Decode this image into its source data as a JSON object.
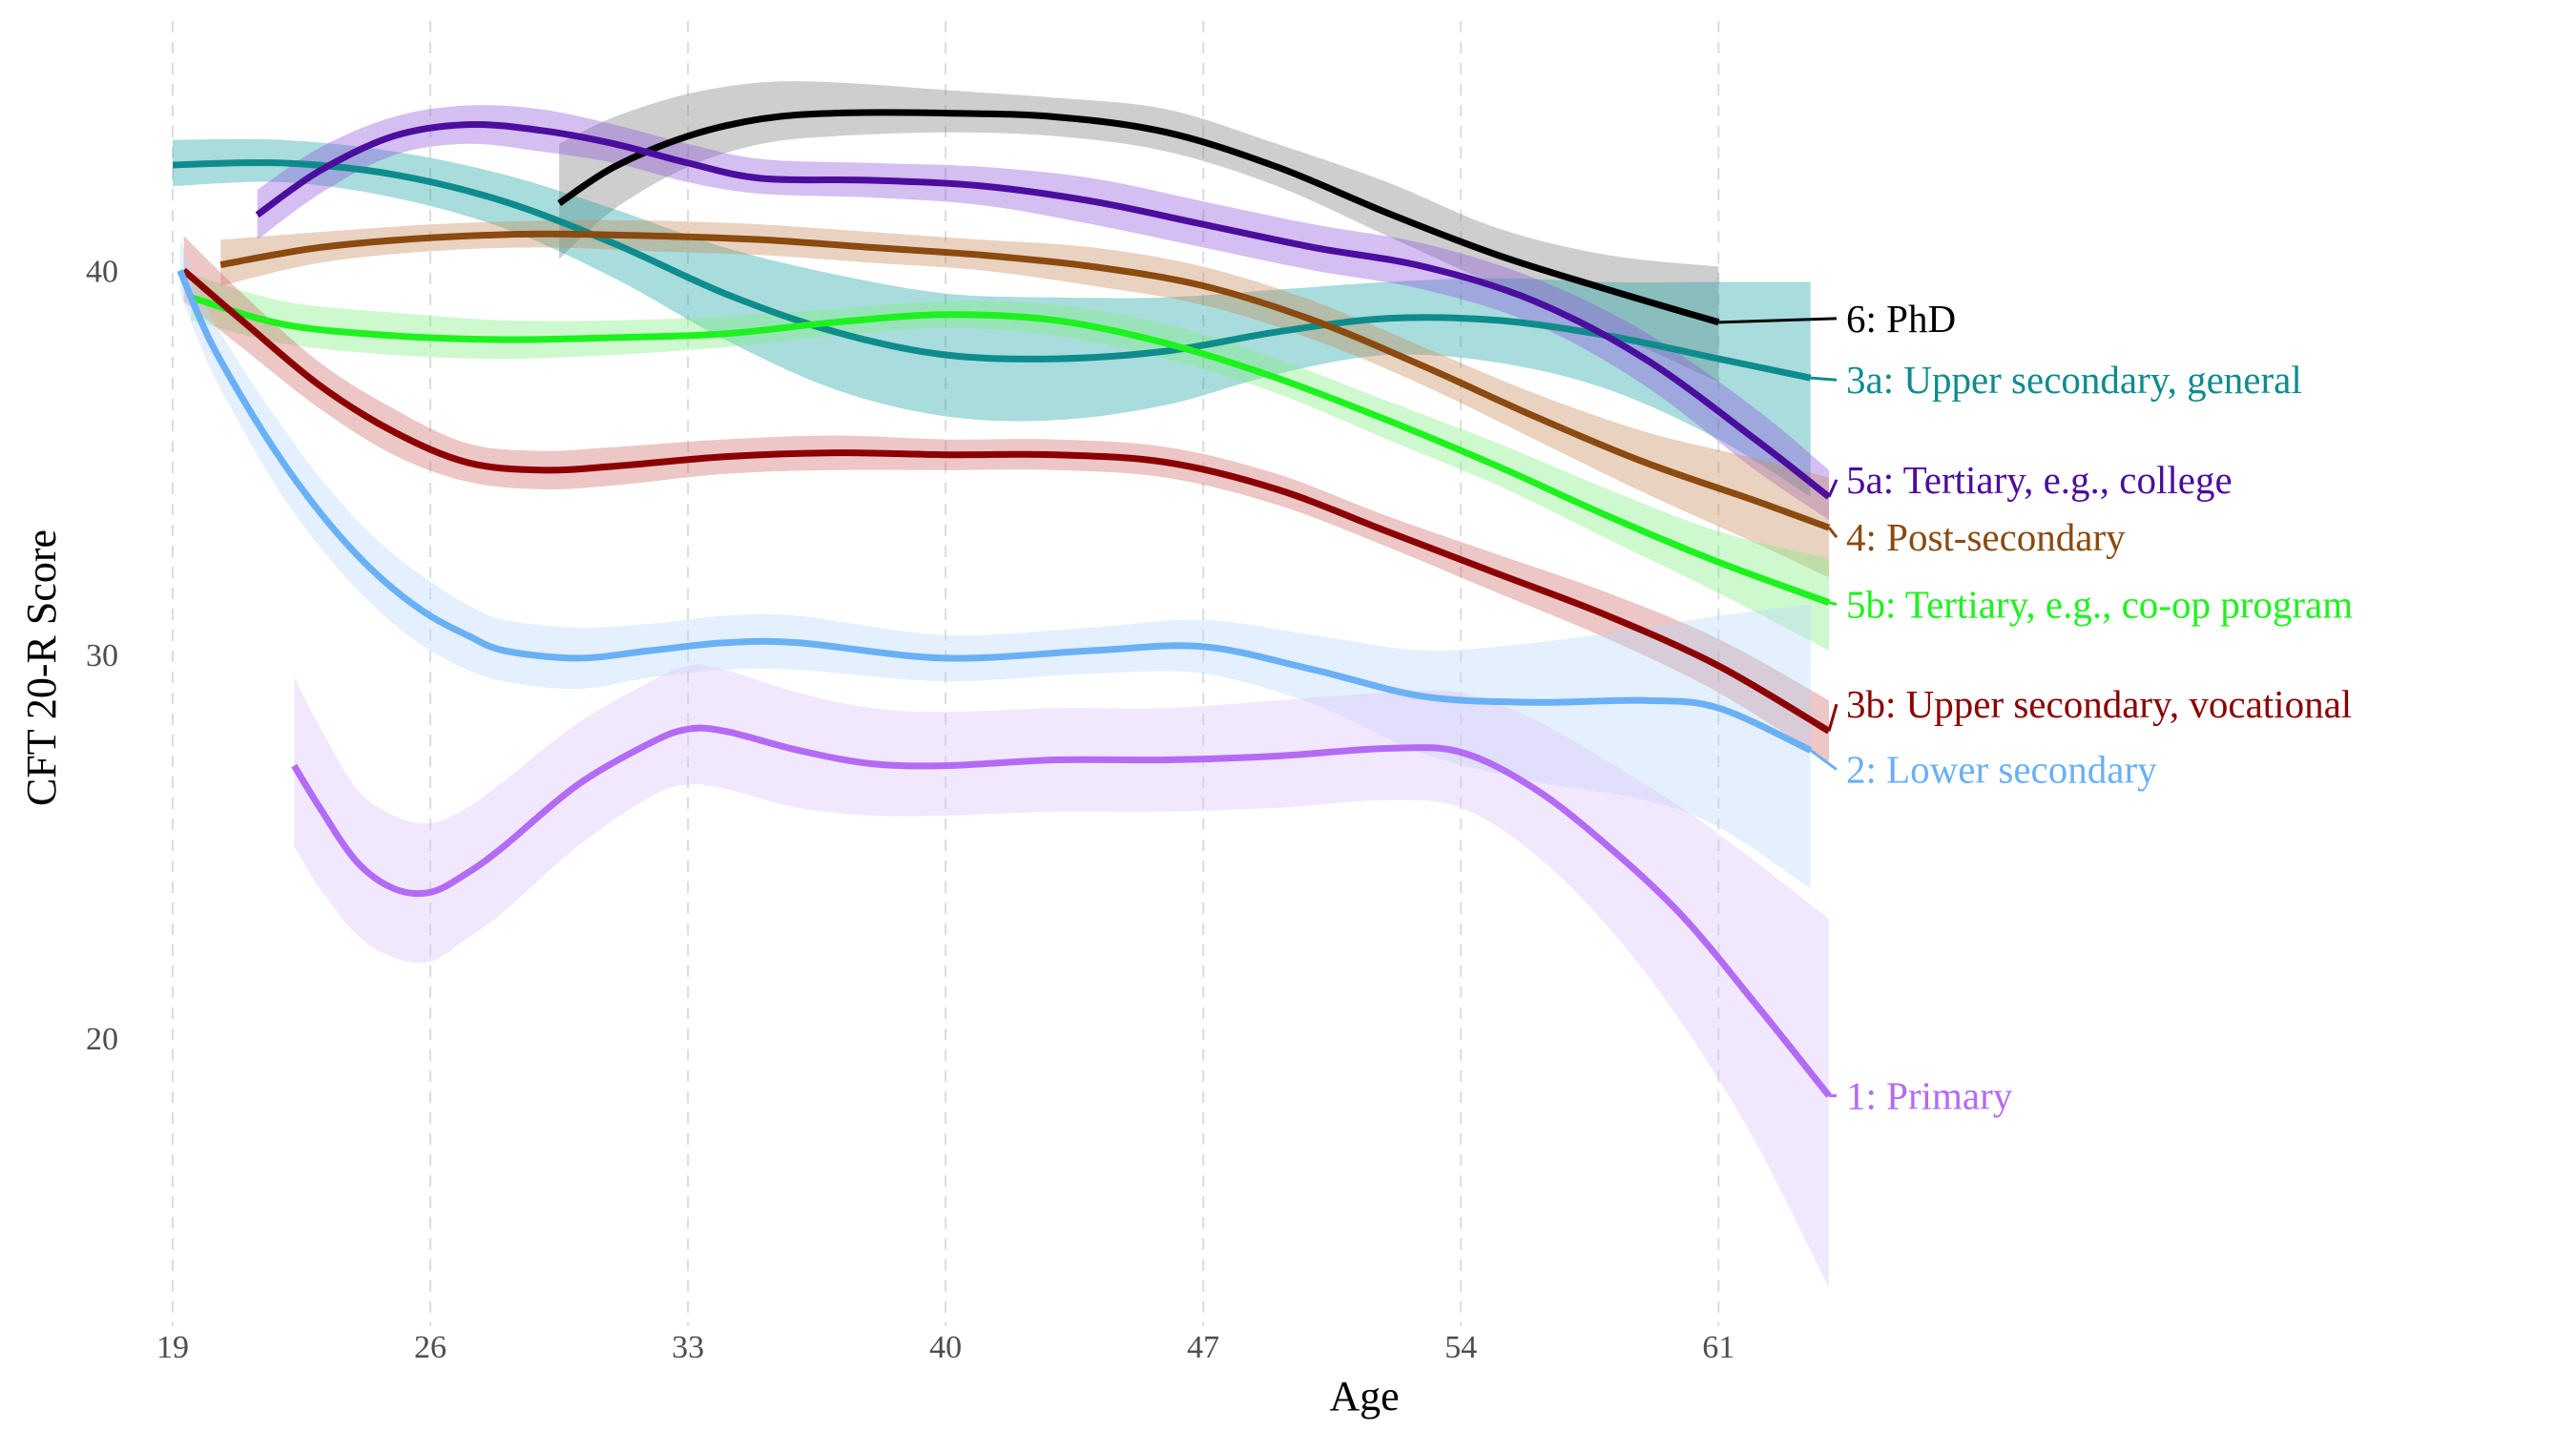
{
  "chart_data": {
    "type": "line",
    "xlabel": "Age",
    "ylabel": "CFT 20-R Score",
    "xlim": [
      19,
      64
    ],
    "ylim": [
      12.5,
      46.5
    ],
    "x_ticks": [
      19,
      26,
      33,
      40,
      47,
      54,
      61
    ],
    "y_ticks": [
      20,
      30,
      40
    ],
    "grid": "vertical dashed",
    "legend": "direct labels at right end of lines",
    "series": [
      {
        "name": "6: PhD",
        "color": "#000000",
        "band_color": "#7f7f7f",
        "label_y": 38.75,
        "x": [
          29.5,
          31,
          33,
          35,
          37,
          40,
          43,
          46,
          49,
          52,
          55,
          58,
          61
        ],
        "y": [
          41.75,
          42.7,
          43.5,
          43.95,
          44.1,
          44.1,
          44.0,
          43.6,
          42.7,
          41.5,
          40.4,
          39.5,
          38.65
        ],
        "lower": [
          40.3,
          41.6,
          42.7,
          43.3,
          43.5,
          43.6,
          43.5,
          43.1,
          42.2,
          40.9,
          39.6,
          38.4,
          37.1
        ],
        "upper": [
          43.3,
          44.0,
          44.6,
          44.9,
          44.9,
          44.7,
          44.5,
          44.2,
          43.3,
          42.3,
          41.1,
          40.4,
          40.1
        ]
      },
      {
        "name": "3a: Upper secondary, general",
        "color": "#0e8c8c",
        "band_color": "#1ca3a3",
        "label_y": 37.15,
        "x": [
          19,
          22,
          25,
          28,
          31,
          34,
          37,
          40,
          43,
          46,
          49,
          52,
          55,
          58,
          61,
          63.5
        ],
        "y": [
          42.75,
          42.8,
          42.5,
          41.8,
          40.7,
          39.4,
          38.4,
          37.8,
          37.7,
          37.9,
          38.4,
          38.75,
          38.7,
          38.3,
          37.7,
          37.2
        ],
        "lower": [
          42.2,
          42.3,
          41.9,
          41.1,
          39.8,
          38.2,
          36.9,
          36.2,
          36.1,
          36.5,
          37.3,
          37.8,
          37.6,
          36.9,
          35.6,
          34.1
        ],
        "upper": [
          43.4,
          43.4,
          43.1,
          42.5,
          41.6,
          40.6,
          39.9,
          39.4,
          39.3,
          39.3,
          39.5,
          39.7,
          39.8,
          39.7,
          39.7,
          39.7
        ]
      },
      {
        "name": "5a: Tertiary, e.g., college",
        "color": "#4b0d9e",
        "band_color": "#8f55dc",
        "label_y": 34.55,
        "x": [
          21.3,
          23,
          25,
          27,
          29,
          31,
          33,
          35,
          38,
          41,
          44,
          47,
          50,
          53,
          56,
          59,
          62,
          64
        ],
        "y": [
          41.45,
          42.6,
          43.5,
          43.8,
          43.65,
          43.3,
          42.8,
          42.4,
          42.35,
          42.2,
          41.8,
          41.2,
          40.6,
          40.1,
          39.2,
          37.7,
          35.6,
          34.1
        ],
        "lower": [
          40.8,
          42.0,
          43.0,
          43.3,
          43.1,
          42.8,
          42.3,
          42.0,
          41.9,
          41.7,
          41.2,
          40.6,
          40.0,
          39.5,
          38.6,
          37.0,
          34.8,
          33.5
        ],
        "upper": [
          42.1,
          43.2,
          44.0,
          44.3,
          44.2,
          43.8,
          43.3,
          42.9,
          42.8,
          42.7,
          42.4,
          41.8,
          41.2,
          40.7,
          39.8,
          38.4,
          36.4,
          34.8
        ]
      },
      {
        "name": "4: Post-secondary",
        "color": "#8b4a0f",
        "band_color": "#c98a5a",
        "label_y": 33.05,
        "x": [
          20.3,
          23,
          26,
          29,
          32,
          35,
          38,
          41,
          44,
          47,
          50,
          53,
          56,
          59,
          62,
          64
        ],
        "y": [
          40.15,
          40.6,
          40.85,
          40.95,
          40.9,
          40.8,
          40.6,
          40.4,
          40.1,
          39.6,
          38.7,
          37.5,
          36.2,
          35.0,
          34.0,
          33.3
        ],
        "lower": [
          39.6,
          40.2,
          40.5,
          40.6,
          40.5,
          40.4,
          40.2,
          40.0,
          39.6,
          39.1,
          38.2,
          37.0,
          35.6,
          34.2,
          32.9,
          32.0
        ],
        "upper": [
          40.8,
          41.0,
          41.2,
          41.3,
          41.3,
          41.2,
          41.0,
          40.8,
          40.6,
          40.1,
          39.2,
          38.0,
          36.8,
          35.8,
          35.1,
          34.6
        ]
      },
      {
        "name": "5b: Tertiary, e.g., co-op program",
        "color": "#1ef21e",
        "band_color": "#7ff07f",
        "label_y": 31.3,
        "x": [
          19.5,
          22,
          25,
          28,
          31,
          34,
          37,
          40,
          43,
          46,
          49,
          52,
          55,
          58,
          61,
          64
        ],
        "y": [
          39.3,
          38.6,
          38.3,
          38.2,
          38.25,
          38.35,
          38.65,
          38.85,
          38.7,
          38.1,
          37.2,
          36.1,
          34.9,
          33.6,
          32.4,
          31.35
        ],
        "lower": [
          38.7,
          38.1,
          37.8,
          37.7,
          37.8,
          38.0,
          38.3,
          38.5,
          38.3,
          37.7,
          36.8,
          35.6,
          34.4,
          33.0,
          31.6,
          30.1
        ],
        "upper": [
          39.9,
          39.2,
          38.9,
          38.7,
          38.7,
          38.8,
          39.0,
          39.2,
          39.1,
          38.6,
          37.7,
          36.6,
          35.5,
          34.3,
          33.2,
          32.5
        ]
      },
      {
        "name": "3b: Upper secondary, vocational",
        "color": "#8b0000",
        "band_color": "#cf6a6a",
        "label_y": 28.7,
        "x": [
          19.3,
          21,
          23,
          25,
          27,
          29,
          31,
          34,
          37,
          40,
          43,
          46,
          49,
          52,
          55,
          58,
          61,
          64
        ],
        "y": [
          40.0,
          38.6,
          37.0,
          35.8,
          35.0,
          34.8,
          34.9,
          35.15,
          35.25,
          35.2,
          35.2,
          35.0,
          34.3,
          33.2,
          32.1,
          31.0,
          29.7,
          28.0
        ],
        "lower": [
          39.2,
          37.9,
          36.4,
          35.2,
          34.5,
          34.3,
          34.4,
          34.7,
          34.8,
          34.8,
          34.8,
          34.6,
          33.9,
          32.8,
          31.6,
          30.4,
          29.0,
          27.2
        ],
        "upper": [
          40.9,
          39.3,
          37.6,
          36.4,
          35.5,
          35.3,
          35.4,
          35.6,
          35.7,
          35.6,
          35.6,
          35.4,
          34.7,
          33.6,
          32.6,
          31.6,
          30.4,
          28.8
        ]
      },
      {
        "name": "2: Lower secondary",
        "color": "#6ab0f5",
        "band_color": "#b8d8fa",
        "label_y": 27.0,
        "x": [
          19.2,
          20,
          21,
          22,
          23,
          24,
          25,
          26,
          27,
          28,
          30,
          32,
          34,
          36,
          40,
          44,
          47,
          50,
          53,
          56,
          59,
          61,
          63.5
        ],
        "y": [
          40.0,
          38.2,
          36.5,
          35.0,
          33.7,
          32.6,
          31.7,
          31.0,
          30.5,
          30.1,
          29.9,
          30.1,
          30.3,
          30.3,
          29.9,
          30.1,
          30.2,
          29.6,
          28.9,
          28.75,
          28.8,
          28.6,
          27.5
        ],
        "lower": [
          39.4,
          37.5,
          35.7,
          34.1,
          32.8,
          31.7,
          30.8,
          30.1,
          29.6,
          29.3,
          29.1,
          29.4,
          29.6,
          29.6,
          29.3,
          29.5,
          29.5,
          28.7,
          27.4,
          26.7,
          26.2,
          25.5,
          23.9
        ],
        "upper": [
          40.8,
          38.9,
          37.3,
          35.9,
          34.6,
          33.5,
          32.6,
          31.9,
          31.3,
          30.9,
          30.7,
          30.8,
          31.0,
          31.0,
          30.5,
          30.7,
          30.9,
          30.5,
          30.1,
          30.3,
          30.7,
          31.0,
          31.3
        ]
      },
      {
        "name": "1: Primary",
        "color": "#b36bf5",
        "band_color": "#dcc3fa",
        "label_y": 18.5,
        "x": [
          22.3,
          23,
          24,
          25,
          26,
          27,
          28,
          30,
          32,
          33,
          34,
          36,
          38,
          40,
          43,
          46,
          49,
          52,
          54,
          56,
          58,
          60,
          62,
          64
        ],
        "y": [
          27.1,
          26.0,
          24.6,
          23.9,
          23.8,
          24.3,
          25.0,
          26.6,
          27.7,
          28.05,
          28.0,
          27.5,
          27.15,
          27.1,
          27.25,
          27.25,
          27.35,
          27.55,
          27.45,
          26.5,
          25.0,
          23.2,
          20.9,
          18.5
        ],
        "lower": [
          25.0,
          23.9,
          22.7,
          22.1,
          22.0,
          22.6,
          23.3,
          25.0,
          26.3,
          26.6,
          26.5,
          26.0,
          25.8,
          25.8,
          25.9,
          25.9,
          26.0,
          26.2,
          26.0,
          24.8,
          22.9,
          20.4,
          17.3,
          13.5
        ],
        "upper": [
          29.4,
          28.1,
          26.5,
          25.8,
          25.6,
          26.0,
          26.7,
          28.2,
          29.3,
          29.7,
          29.6,
          29.0,
          28.6,
          28.5,
          28.6,
          28.6,
          28.8,
          29.0,
          29.0,
          28.3,
          27.2,
          26.0,
          24.6,
          23.1
        ]
      }
    ]
  }
}
